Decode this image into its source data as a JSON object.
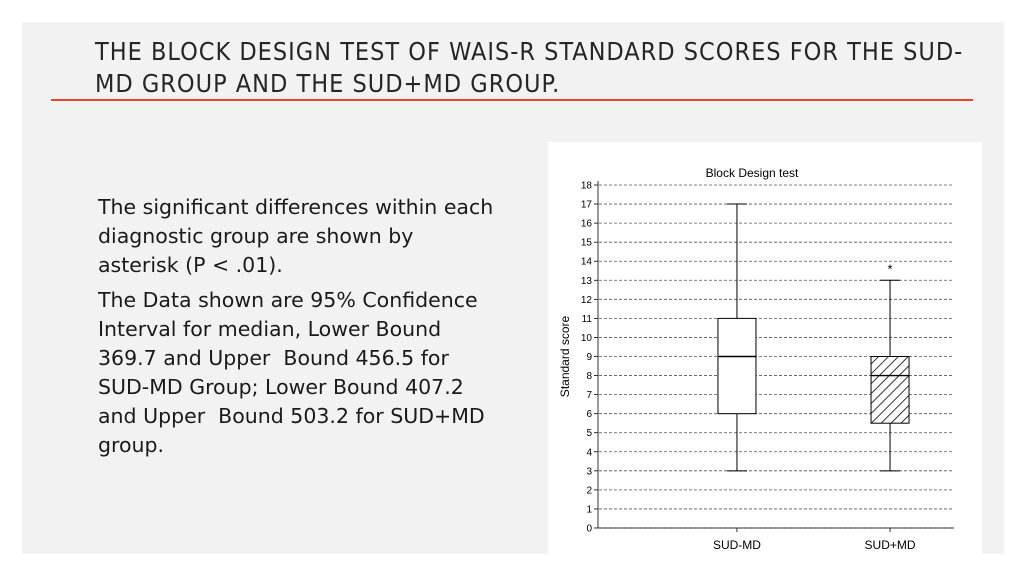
{
  "slide": {
    "title": "The Block Design test of WAIS-R standard scores for the SUD-MD group and the SUD+MD group.",
    "paragraphs": [
      "The significant differences within each diagnostic group are shown by asterisk (P < .01).",
      "The Data shown are 95% Confidence Interval for median, Lower Bound 369.7 and Upper  Bound 456.5 for SUD-MD Group; Lower Bound 407.2 and Upper  Bound 503.2 for SUD+MD group."
    ],
    "accent_color": "#e0472d"
  },
  "chart_data": {
    "type": "boxplot",
    "title": "Block Design test",
    "xlabel": "",
    "ylabel": "Standard score",
    "ylim": [
      0,
      18
    ],
    "yticks": [
      0,
      1,
      2,
      3,
      4,
      5,
      6,
      7,
      8,
      9,
      10,
      11,
      12,
      13,
      14,
      15,
      16,
      17,
      18
    ],
    "grid": true,
    "categories": [
      "SUD-MD",
      "SUD+MD"
    ],
    "boxes": [
      {
        "category": "SUD-MD",
        "min": 3,
        "q1": 6,
        "median": 9,
        "q3": 11,
        "max": 17,
        "fill": "none",
        "annotation": ""
      },
      {
        "category": "SUD+MD",
        "min": 3,
        "q1": 5.5,
        "median": 8,
        "q3": 9,
        "max": 13,
        "fill": "hatched",
        "annotation": "*"
      }
    ]
  }
}
